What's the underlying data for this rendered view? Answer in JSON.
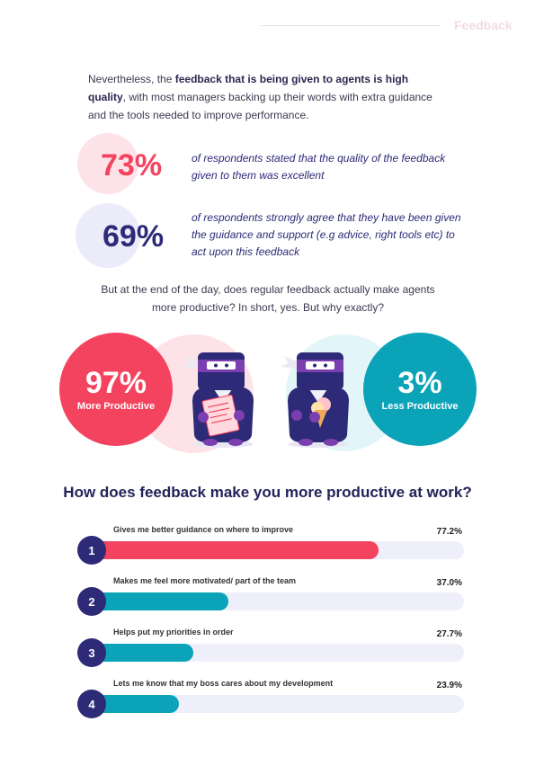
{
  "header": {
    "title": "Feedback"
  },
  "intro": {
    "part1": "Nevertheless, the ",
    "bold": "feedback that is being given to agents is high quality",
    "part2": ", with most managers backing up their words with extra guidance and the tools needed to improve performance."
  },
  "stats": [
    {
      "value": "73%",
      "text": "of respondents stated that the quality of the feedback given to them was excellent",
      "color": "#f4435e"
    },
    {
      "value": "69%",
      "text": "of respondents strongly agree that they have been given the guidance and support (e.g advice, right tools etc) to act upon this feedback",
      "color": "#2d2a78"
    }
  ],
  "middle_text": "But at the end of the day, does regular feedback actually make agents more productive? In short, yes. But why exactly?",
  "productive": {
    "more": {
      "value": "97%",
      "label": "More Productive",
      "color": "#f4435e"
    },
    "less": {
      "value": "3%",
      "label": "Less Productive",
      "color": "#0aa3b8"
    }
  },
  "section_title": "How does feedback make you more productive at work?",
  "reasons": [
    {
      "number": "1",
      "label": "Gives me better guidance on where to improve",
      "percent_text": "77.2%",
      "value": 77.2,
      "color": "#f4435e"
    },
    {
      "number": "2",
      "label": "Makes me feel more motivated/ part of the team",
      "percent_text": "37.0%",
      "value": 37.0,
      "color": "#0aa3b8"
    },
    {
      "number": "3",
      "label": "Helps put my priorities in order",
      "percent_text": "27.7%",
      "value": 27.7,
      "color": "#0aa3b8"
    },
    {
      "number": "4",
      "label": "Lets me know that my boss cares about my development",
      "percent_text": "23.9%",
      "value": 23.9,
      "color": "#0aa3b8"
    }
  ],
  "colors": {
    "navy": "#2d2a78",
    "coral": "#f4435e",
    "teal": "#0aa3b8",
    "purple": "#7b3fb0"
  }
}
